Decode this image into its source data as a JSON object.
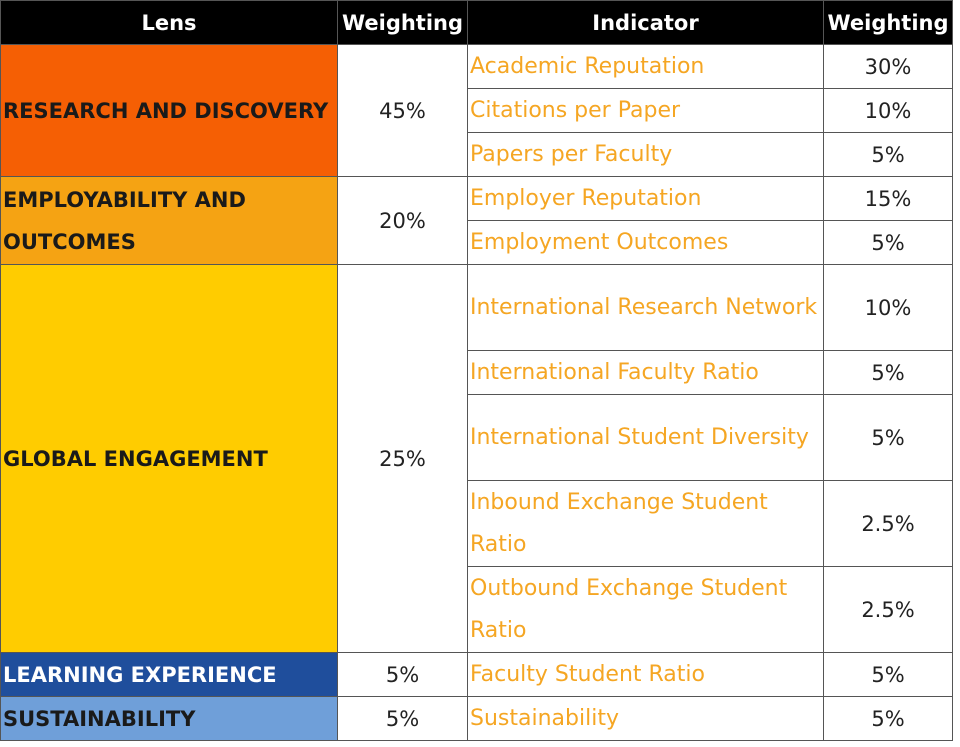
{
  "header": [
    "Lens",
    "Weighting",
    "Indicator",
    "Weighting"
  ],
  "lenses": [
    {
      "name": "RESEARCH AND DISCOVERY",
      "weighting": "45%",
      "indicators": [
        {
          "name": "Academic Reputation",
          "weighting": "30%"
        },
        {
          "name": "Citations per Paper",
          "weighting": "10%"
        },
        {
          "name": "Papers per Faculty",
          "weighting": "5%"
        }
      ]
    },
    {
      "name": "EMPLOYABILITY AND OUTCOMES",
      "weighting": "20%",
      "indicators": [
        {
          "name": "Employer Reputation",
          "weighting": "15%"
        },
        {
          "name": "Employment Outcomes",
          "weighting": "5%"
        }
      ]
    },
    {
      "name": "GLOBAL ENGAGEMENT",
      "weighting": "25%",
      "indicators": [
        {
          "name": "International Research Network",
          "weighting": "10%"
        },
        {
          "name": "International Faculty Ratio",
          "weighting": "5%"
        },
        {
          "name": "International Student Diversity",
          "weighting": "5%"
        },
        {
          "name": "Inbound Exchange Student Ratio",
          "weighting": "2.5%"
        },
        {
          "name": "Outbound Exchange Student Ratio",
          "weighting": "2.5%"
        }
      ]
    },
    {
      "name": "LEARNING EXPERIENCE",
      "weighting": "5%",
      "indicators": [
        {
          "name": "Faculty Student Ratio",
          "weighting": "5%"
        }
      ]
    },
    {
      "name": "SUSTAINABILITY",
      "weighting": "5%",
      "indicators": [
        {
          "name": "Sustainability",
          "weighting": "5%"
        }
      ]
    }
  ]
}
